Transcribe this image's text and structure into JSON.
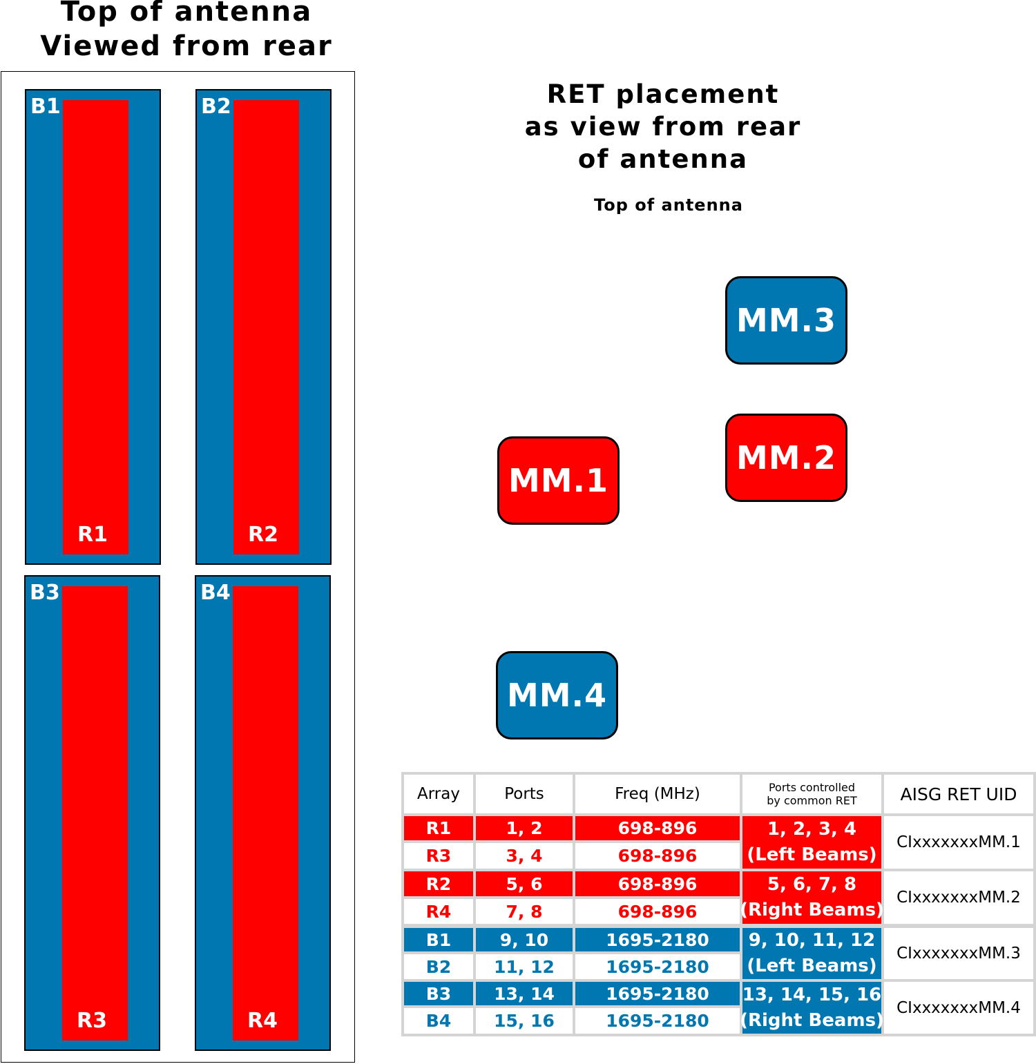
{
  "antenna_view": {
    "title_line1": "Top of antenna",
    "title_line2": "Viewed from rear",
    "columns": [
      {
        "blue_label": "B1",
        "red_label": "R1"
      },
      {
        "blue_label": "B2",
        "red_label": "R2"
      },
      {
        "blue_label": "B3",
        "red_label": "R3"
      },
      {
        "blue_label": "B4",
        "red_label": "R4"
      }
    ]
  },
  "ret_placement": {
    "title_line1": "RET placement",
    "title_line2": "as view from rear",
    "title_line3": "of antenna",
    "top_label": "Top of antenna",
    "boxes": [
      {
        "label": "MM.1",
        "color": "#ff0000"
      },
      {
        "label": "MM.2",
        "color": "#ff0000"
      },
      {
        "label": "MM.3",
        "color": "#0077b0"
      },
      {
        "label": "MM.4",
        "color": "#0077b0"
      }
    ]
  },
  "colors": {
    "red": "#ff0000",
    "blue": "#0077b0"
  },
  "table": {
    "headers": {
      "array": "Array",
      "ports": "Ports",
      "freq": "Freq (MHz)",
      "common_line1": "Ports controlled",
      "common_line2": "by common RET",
      "uid": "AISG RET UID"
    },
    "rows": [
      {
        "array": "R1",
        "ports": "1, 2",
        "freq": "698-896"
      },
      {
        "array": "R3",
        "ports": "3, 4",
        "freq": "698-896"
      },
      {
        "array": "R2",
        "ports": "5, 6",
        "freq": "698-896"
      },
      {
        "array": "R4",
        "ports": "7, 8",
        "freq": "698-896"
      },
      {
        "array": "B1",
        "ports": "9, 10",
        "freq": "1695-2180"
      },
      {
        "array": "B2",
        "ports": "11, 12",
        "freq": "1695-2180"
      },
      {
        "array": "B3",
        "ports": "13, 14",
        "freq": "1695-2180"
      },
      {
        "array": "B4",
        "ports": "15, 16",
        "freq": "1695-2180"
      }
    ],
    "groups": [
      {
        "common_line1": "1, 2, 3, 4",
        "common_line2": "(Left Beams)",
        "uid": "CIxxxxxxxMM.1"
      },
      {
        "common_line1": "5, 6, 7, 8",
        "common_line2": "(Right Beams)",
        "uid": "CIxxxxxxxMM.2"
      },
      {
        "common_line1": "9, 10, 11, 12",
        "common_line2": "(Left Beams)",
        "uid": "CIxxxxxxxMM.3"
      },
      {
        "common_line1": "13, 14, 15, 16",
        "common_line2": "(Right Beams)",
        "uid": "CIxxxxxxxMM.4"
      }
    ]
  }
}
